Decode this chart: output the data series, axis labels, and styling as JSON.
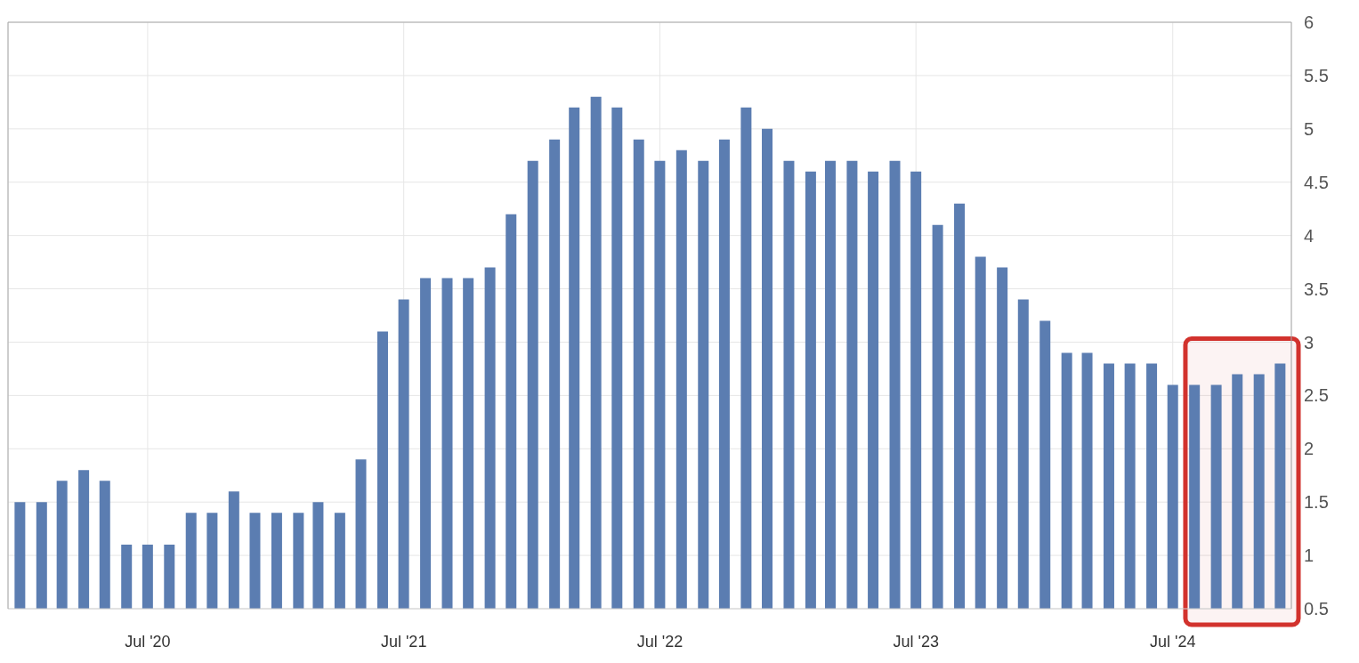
{
  "chart_data": {
    "type": "bar",
    "x": [
      "2020-01",
      "2020-02",
      "2020-03",
      "2020-04",
      "2020-05",
      "2020-06",
      "2020-07",
      "2020-08",
      "2020-09",
      "2020-10",
      "2020-11",
      "2020-12",
      "2021-01",
      "2021-02",
      "2021-03",
      "2021-04",
      "2021-05",
      "2021-06",
      "2021-07",
      "2021-08",
      "2021-09",
      "2021-10",
      "2021-11",
      "2021-12",
      "2022-01",
      "2022-02",
      "2022-03",
      "2022-04",
      "2022-05",
      "2022-06",
      "2022-07",
      "2022-08",
      "2022-09",
      "2022-10",
      "2022-11",
      "2022-12",
      "2023-01",
      "2023-02",
      "2023-03",
      "2023-04",
      "2023-05",
      "2023-06",
      "2023-07",
      "2023-08",
      "2023-09",
      "2023-10",
      "2023-11",
      "2023-12",
      "2024-01",
      "2024-02",
      "2024-03",
      "2024-04",
      "2024-05",
      "2024-06",
      "2024-07",
      "2024-08",
      "2024-09",
      "2024-10",
      "2024-11",
      "2024-12"
    ],
    "values": [
      1.5,
      1.5,
      1.7,
      1.8,
      1.7,
      1.1,
      1.1,
      1.1,
      1.4,
      1.4,
      1.6,
      1.4,
      1.4,
      1.4,
      1.5,
      1.4,
      1.9,
      3.1,
      3.4,
      3.6,
      3.6,
      3.6,
      3.7,
      4.2,
      4.7,
      4.9,
      5.2,
      5.3,
      5.2,
      4.9,
      4.7,
      4.8,
      4.7,
      4.9,
      5.2,
      5.0,
      4.7,
      4.6,
      4.7,
      4.7,
      4.6,
      4.7,
      4.6,
      4.1,
      4.3,
      3.8,
      3.7,
      3.4,
      3.2,
      2.9,
      2.9,
      2.8,
      2.8,
      2.8,
      2.6,
      2.6,
      2.6,
      2.7,
      2.7,
      2.8
    ],
    "color": "#5b7db1",
    "xlim": [
      "2019-12-15",
      "2024-12-17"
    ],
    "xticks": [
      {
        "value": "2020-07",
        "label": "Jul '20"
      },
      {
        "value": "2021-07",
        "label": "Jul '21"
      },
      {
        "value": "2022-07",
        "label": "Jul '22"
      },
      {
        "value": "2023-07",
        "label": "Jul '23"
      },
      {
        "value": "2024-07",
        "label": "Jul '24"
      }
    ],
    "ylim": [
      0.5,
      6
    ],
    "yticks": [
      0.5,
      1,
      1.5,
      2,
      2.5,
      3,
      3.5,
      4,
      4.5,
      5,
      5.5,
      6
    ],
    "grid": true,
    "bands": [
      {
        "axis": "x",
        "from": "2024-07-19",
        "to": "2024-12-17",
        "color": "#d2322d"
      }
    ]
  }
}
